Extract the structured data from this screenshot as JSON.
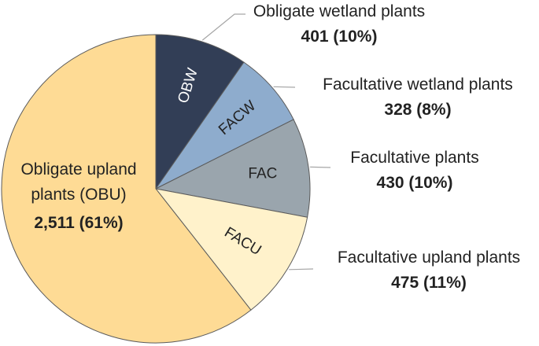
{
  "chart_data": {
    "type": "pie",
    "title": "",
    "slices": [
      {
        "abbr": "OBW",
        "name": "Obligate wetland plants",
        "value": 401,
        "value_label": "401 (10%)",
        "percent": 10,
        "color": "#323e56",
        "abbr_color": "#ffffff"
      },
      {
        "abbr": "FACW",
        "name": "Facultative wetland plants",
        "value": 328,
        "value_label": "328 (8%)",
        "percent": 8,
        "color": "#8eaccd",
        "abbr_color": "#222222"
      },
      {
        "abbr": "FAC",
        "name": "Facultative plants",
        "value": 430,
        "value_label": "430 (10%)",
        "percent": 10,
        "color": "#9aa5ad",
        "abbr_color": "#222222"
      },
      {
        "abbr": "FACU",
        "name": "Facultative upland plants",
        "value": 475,
        "value_label": "475 (11%)",
        "percent": 11,
        "color": "#fff2cb",
        "abbr_color": "#222222"
      },
      {
        "abbr": "OBU",
        "name_lines": [
          "Obligate upland",
          "plants (OBU)"
        ],
        "value": 2511,
        "value_label": "2,511 (61%)",
        "percent": 61,
        "color": "#fedb95",
        "abbr_color": "#222222"
      }
    ],
    "start_angle": "12 o'clock",
    "direction": "clockwise"
  }
}
